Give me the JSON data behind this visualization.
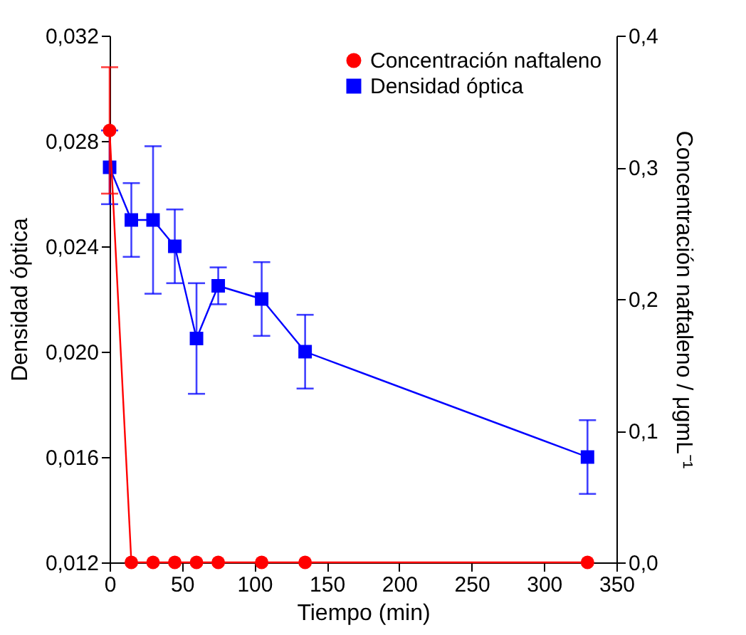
{
  "chart_data": {
    "type": "line",
    "xlabel": "Tiempo (min)",
    "ylabel": "Densidad óptica",
    "y2label": "Concentración naftaleno / μgmL⁻¹",
    "x": [
      0,
      15,
      30,
      45,
      60,
      75,
      105,
      135,
      330
    ],
    "series": [
      {
        "name": "Concentración naftaleno",
        "color": "#ff0000",
        "axis": "y2",
        "marker": "circle",
        "values": [
          0.328,
          0,
          0,
          0,
          0,
          0,
          0,
          0,
          0
        ],
        "errors": [
          0.048,
          null,
          null,
          null,
          null,
          null,
          null,
          null,
          null
        ]
      },
      {
        "name": "Densidad óptica",
        "color": "#0000ff",
        "axis": "y",
        "marker": "square",
        "values": [
          0.027,
          0.025,
          0.025,
          0.024,
          0.0205,
          0.0225,
          0.022,
          0.02,
          0.016
        ],
        "errors": [
          0.0014,
          0.0014,
          0.0028,
          0.0014,
          0.0021,
          0.0007,
          0.0014,
          0.0014,
          0.0014
        ]
      }
    ],
    "xlim": [
      0,
      350
    ],
    "xticks": [
      0,
      50,
      100,
      150,
      200,
      250,
      300,
      350
    ],
    "ylim": [
      0.012,
      0.032
    ],
    "yticks": [
      {
        "value": 0.012,
        "label": "0,012"
      },
      {
        "value": 0.016,
        "label": "0,016"
      },
      {
        "value": 0.02,
        "label": "0,020"
      },
      {
        "value": 0.024,
        "label": "0,024"
      },
      {
        "value": 0.028,
        "label": "0,028"
      },
      {
        "value": 0.032,
        "label": "0,032"
      }
    ],
    "y2lim": [
      0,
      0.4
    ],
    "y2ticks": [
      {
        "value": 0,
        "label": "0,0"
      },
      {
        "value": 0.1,
        "label": "0,1"
      },
      {
        "value": 0.2,
        "label": "0,2"
      },
      {
        "value": 0.3,
        "label": "0,3"
      },
      {
        "value": 0.4,
        "label": "0,4"
      }
    ],
    "legend": "top right",
    "grid": false,
    "line_style": "solid"
  }
}
